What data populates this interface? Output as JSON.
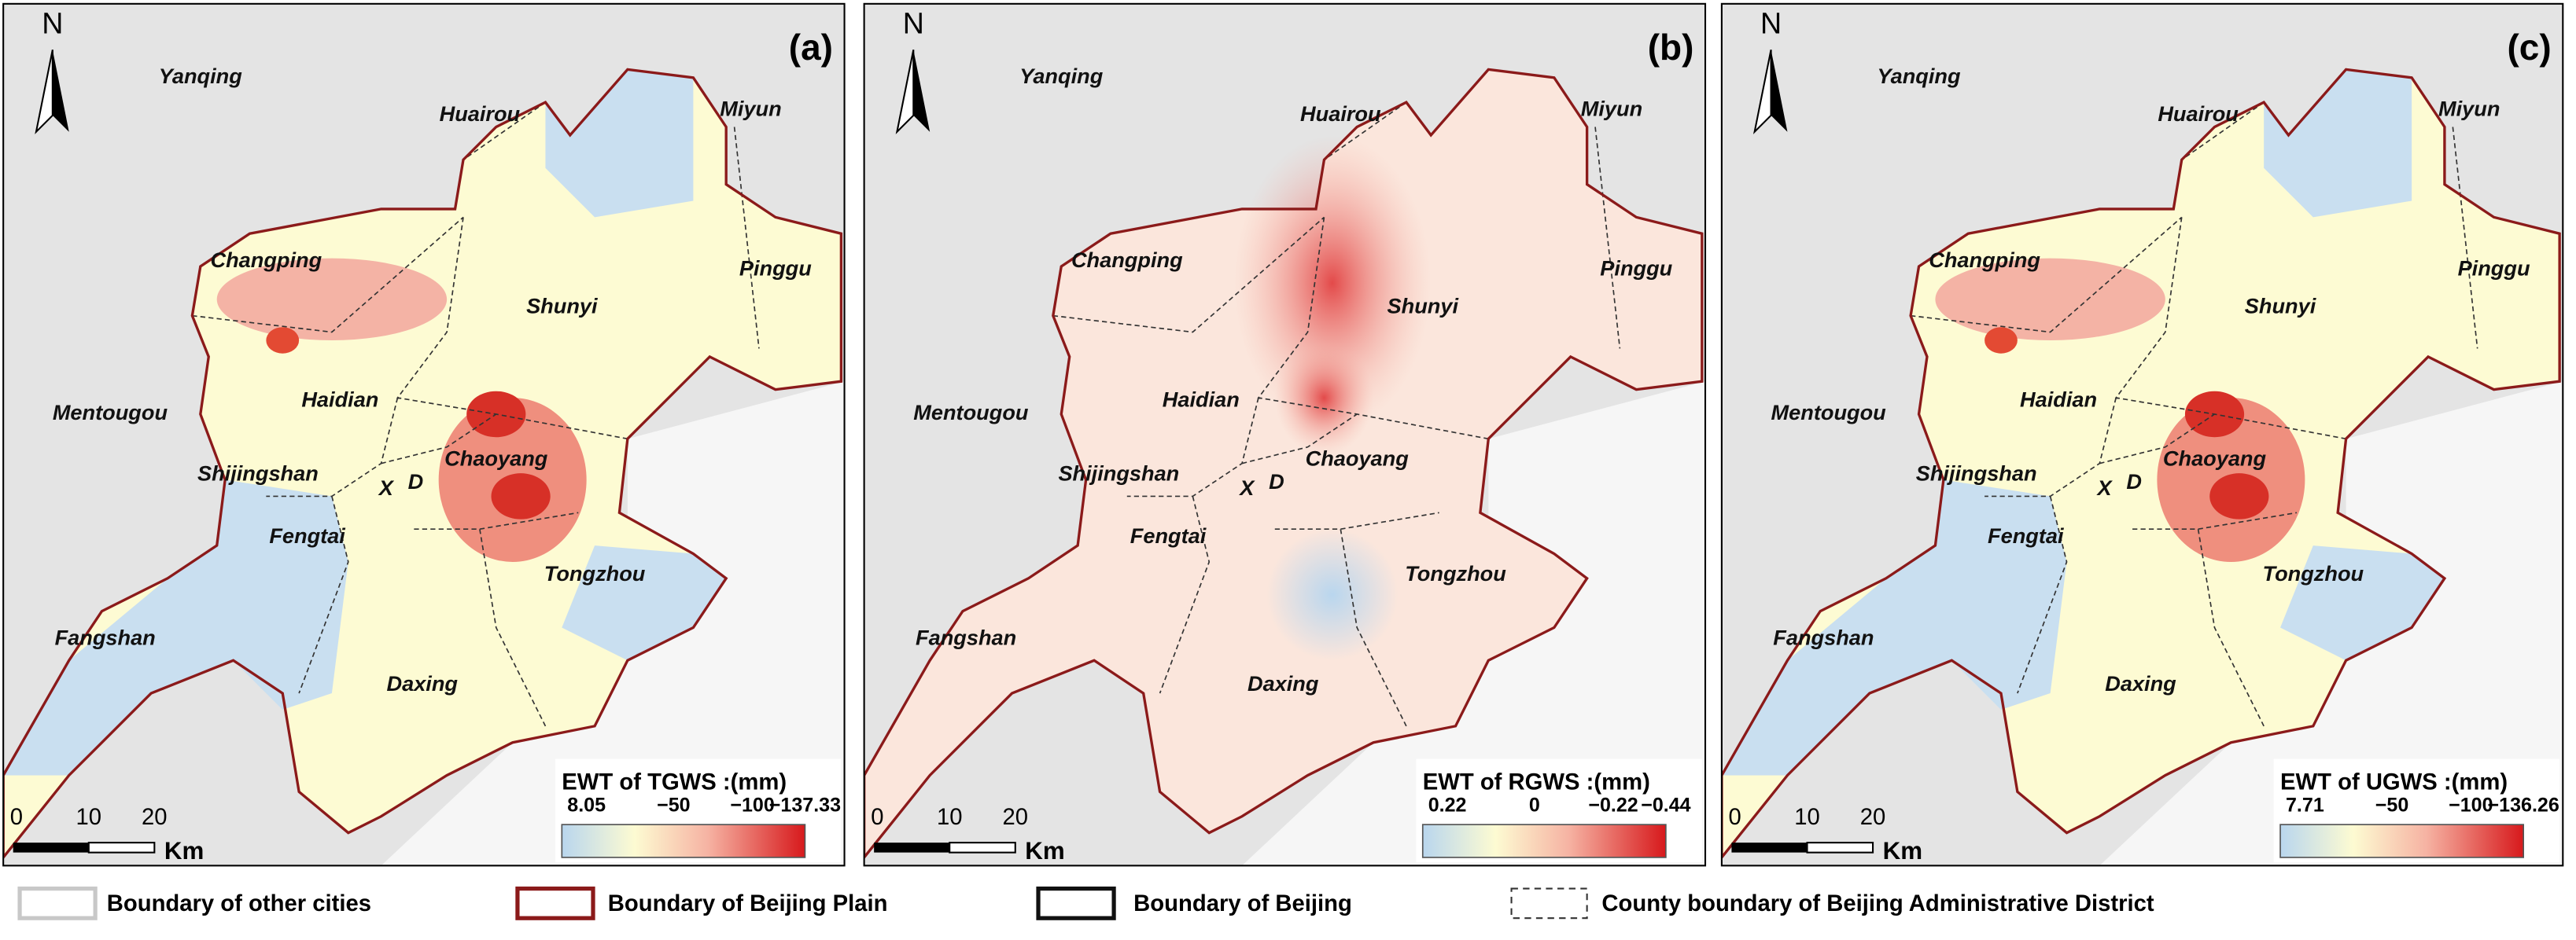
{
  "panels": [
    {
      "label": "(a)",
      "north": "N",
      "places": [
        "Yanqing",
        "Huairou",
        "Miyun",
        "Changping",
        "Shunyi",
        "Pinggu",
        "Haidian",
        "Mentougou",
        "Chaoyang",
        "Shijingshan",
        "X",
        "D",
        "Fengtai",
        "Tongzhou",
        "Fangshan",
        "Daxing"
      ],
      "legend_title": "EWT of TGWS :(mm)",
      "colorbar_labels": [
        "8.05",
        "−50",
        "−100",
        "−137.33"
      ],
      "scale_labels": [
        "0",
        "10",
        "20"
      ],
      "scale_unit": "Km"
    },
    {
      "label": "(b)",
      "north": "N",
      "places": [
        "Yanqing",
        "Huairou",
        "Miyun",
        "Changping",
        "Shunyi",
        "Pinggu",
        "Haidian",
        "Mentougou",
        "Chaoyang",
        "Shijingshan",
        "X",
        "D",
        "Fengtai",
        "Tongzhou",
        "Fangshan",
        "Daxing"
      ],
      "legend_title": "EWT of RGWS :(mm)",
      "colorbar_labels": [
        "0.22",
        "0",
        "−0.22",
        "−0.44"
      ],
      "scale_labels": [
        "0",
        "10",
        "20"
      ],
      "scale_unit": "Km"
    },
    {
      "label": "(c)",
      "north": "N",
      "places": [
        "Yanqing",
        "Huairou",
        "Miyun",
        "Changping",
        "Shunyi",
        "Pinggu",
        "Haidian",
        "Mentougou",
        "Chaoyang",
        "Shijingshan",
        "X",
        "D",
        "Fengtai",
        "Tongzhou",
        "Fangshan",
        "Daxing"
      ],
      "legend_title": "EWT of UGWS :(mm)",
      "colorbar_labels": [
        "7.71",
        "−50",
        "−100",
        "−136.26"
      ],
      "scale_labels": [
        "0",
        "10",
        "20"
      ],
      "scale_unit": "Km"
    }
  ],
  "legend": [
    "Boundary of other cities",
    "Boundary of Beijing Plain",
    "Boundary of Beijing",
    "County boundary of Beijing Administrative District"
  ]
}
